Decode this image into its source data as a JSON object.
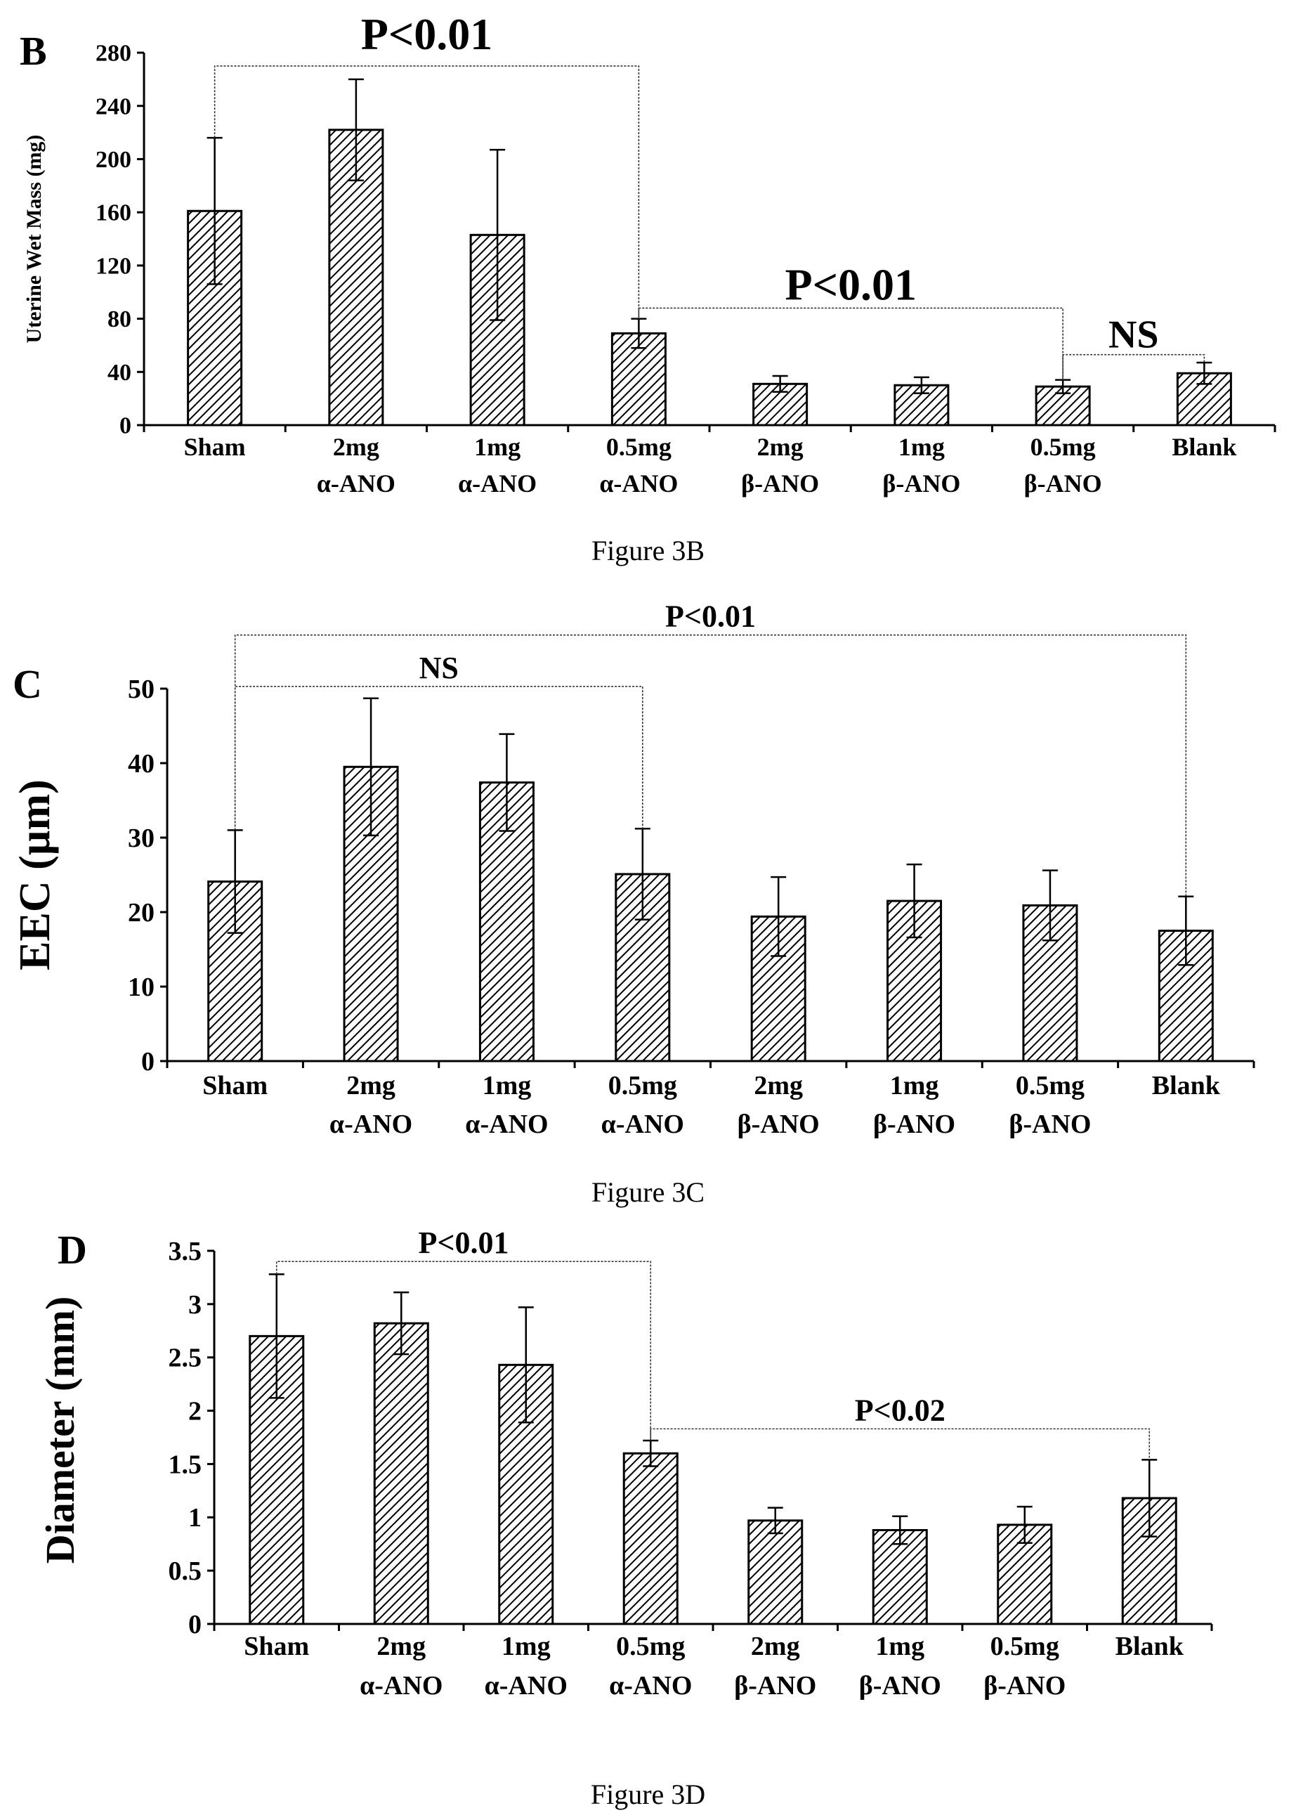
{
  "figures": [
    {
      "caption": "Figure 3B"
    },
    {
      "caption": "Figure 3C"
    },
    {
      "caption": "Figure 3D"
    }
  ],
  "chart_data": [
    {
      "type": "bar",
      "panel_letter": "B",
      "ylabel": "Uterine Wet Mass (mg)",
      "ylim": [
        0,
        280
      ],
      "yticks": [
        0,
        40,
        80,
        120,
        160,
        200,
        240,
        280
      ],
      "categories": [
        [
          "Sham"
        ],
        [
          "2mg",
          "α-ANO"
        ],
        [
          "1mg",
          "α-ANO"
        ],
        [
          "0.5mg",
          "α-ANO"
        ],
        [
          "2mg",
          "β-ANO"
        ],
        [
          "1mg",
          "β-ANO"
        ],
        [
          "0.5mg",
          "β-ANO"
        ],
        [
          "Blank"
        ]
      ],
      "values": [
        161,
        222,
        143,
        69,
        31,
        30,
        29,
        39
      ],
      "errors": [
        55,
        38,
        64,
        11,
        6,
        6,
        5,
        8
      ],
      "annotations": [
        {
          "label": "P<0.01",
          "from": 0,
          "to": 3,
          "y": 270
        },
        {
          "label": "P<0.01",
          "from": 3,
          "to": 6,
          "y": 88
        },
        {
          "label": "NS",
          "from": 6,
          "to": 7,
          "y": 53
        }
      ],
      "bar_pattern": "diagonal hatch",
      "bar_color": "#000000"
    },
    {
      "type": "bar",
      "panel_letter": "C",
      "ylabel": "EEC (µm)",
      "ylim": [
        0,
        50
      ],
      "yticks": [
        0,
        10,
        20,
        30,
        40,
        50
      ],
      "categories": [
        [
          "Sham"
        ],
        [
          "2mg",
          "α-ANO"
        ],
        [
          "1mg",
          "α-ANO"
        ],
        [
          "0.5mg",
          "α-ANO"
        ],
        [
          "2mg",
          "β-ANO"
        ],
        [
          "1mg",
          "β-ANO"
        ],
        [
          "0.5mg",
          "β-ANO"
        ],
        [
          "Blank"
        ]
      ],
      "values": [
        24.1,
        39.5,
        37.4,
        25.1,
        19.4,
        21.5,
        20.9,
        17.5
      ],
      "errors": [
        6.9,
        9.2,
        6.5,
        6.1,
        5.3,
        4.9,
        4.7,
        4.6
      ],
      "annotations": [
        {
          "label": "P<0.01",
          "from": 0,
          "to": 7,
          "y": 57.2
        },
        {
          "label": "NS",
          "from": 0,
          "to": 3,
          "y": 50.3
        }
      ],
      "bar_pattern": "diagonal hatch",
      "bar_color": "#000000"
    },
    {
      "type": "bar",
      "panel_letter": "D",
      "ylabel": "Diameter (mm)",
      "ylim": [
        0,
        3.5
      ],
      "yticks": [
        "0",
        "0.5",
        "1",
        "1.5",
        "2",
        "2.5",
        "3",
        "3.5"
      ],
      "categories": [
        [
          "Sham"
        ],
        [
          "2mg",
          "α-ANO"
        ],
        [
          "1mg",
          "α-ANO"
        ],
        [
          "0.5mg",
          "α-ANO"
        ],
        [
          "2mg",
          "β-ANO"
        ],
        [
          "1mg",
          "β-ANO"
        ],
        [
          "0.5mg",
          "β-ANO"
        ],
        [
          "Blank"
        ]
      ],
      "values": [
        2.7,
        2.82,
        2.43,
        1.6,
        0.97,
        0.88,
        0.93,
        1.18
      ],
      "errors": [
        0.58,
        0.29,
        0.54,
        0.12,
        0.12,
        0.13,
        0.17,
        0.36
      ],
      "annotations": [
        {
          "label": "P<0.01",
          "from": 0,
          "to": 3,
          "y": 3.4
        },
        {
          "label": "P<0.02",
          "from": 3,
          "to": 7,
          "y": 1.83
        }
      ],
      "bar_pattern": "diagonal hatch",
      "bar_color": "#000000"
    }
  ]
}
